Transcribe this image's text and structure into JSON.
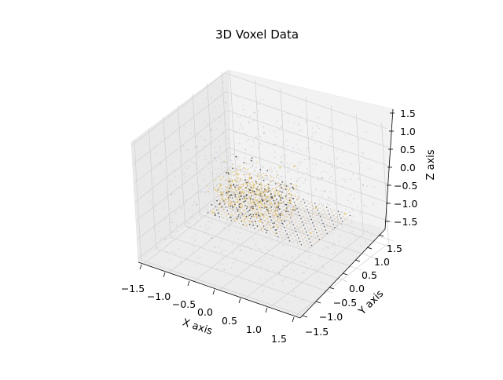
{
  "chart_data": {
    "type": "scatter",
    "projection": "3d",
    "title": "3D Voxel Data",
    "xlabel": "X axis",
    "ylabel": "Y axis",
    "zlabel": "Z axis",
    "xlim": [
      -1.6,
      1.6
    ],
    "ylim": [
      -1.6,
      1.6
    ],
    "zlim": [
      -1.6,
      1.6
    ],
    "xticks": [
      "−1.5",
      "−1.0",
      "−0.5",
      "0.0",
      "0.5",
      "1.0",
      "1.5"
    ],
    "yticks": [
      "−1.5",
      "−1.0",
      "−0.5",
      "0.0",
      "0.5",
      "1.0",
      "1.5"
    ],
    "zticks": [
      "1.5",
      "1.0",
      "0.5",
      "0.0",
      "−0.5",
      "−1.0",
      "−1.5"
    ],
    "grid": true,
    "legend": false,
    "colors": {
      "pane": "#f2f2f2",
      "grid": "#d0d0d0",
      "scatter_gray": "#c9c9c9",
      "scatter_lavender": "#c8c8f0",
      "object_gold": "#e6c868",
      "object_tan": "#d8b890",
      "object_dark": "#404040"
    },
    "series": [
      {
        "values": [
          [
            -1.2,
            0.4,
            0.9
          ],
          [
            -0.9,
            -0.6,
            1.2
          ],
          [
            0.3,
            1.1,
            1.4
          ],
          [
            1.1,
            0.2,
            0.8
          ],
          [
            -0.4,
            -1.1,
            -0.7
          ],
          [
            0.8,
            -0.9,
            -1.2
          ],
          [
            -1.3,
            0.9,
            -0.3
          ],
          [
            1.3,
            1.2,
            0.1
          ],
          [
            0.0,
            0.5,
            1.0
          ],
          [
            -0.7,
            1.3,
            0.5
          ],
          [
            0.6,
            -0.3,
            1.3
          ],
          [
            -1.1,
            -1.2,
            0.2
          ],
          [
            1.0,
            0.9,
            -0.9
          ],
          [
            -0.2,
            -0.5,
            -1.3
          ],
          [
            0.4,
            1.4,
            -0.6
          ],
          [
            -1.4,
            0.1,
            -1.0
          ],
          [
            1.2,
            -1.3,
            0.6
          ],
          [
            -0.5,
            0.7,
            1.5
          ],
          [
            0.9,
            0.4,
            -0.4
          ],
          [
            -0.8,
            -0.2,
            0.7
          ]
        ]
      },
      {
        "values": [
          [
            -0.1,
            -0.5,
            0.3
          ],
          [
            0.4,
            -0.5,
            0.4
          ],
          [
            -0.4,
            -0.7,
            0.45
          ],
          [
            0.2,
            0.3,
            0.6
          ],
          [
            -0.9,
            -0.2,
            -0.8
          ],
          [
            0.8,
            0.2,
            -0.8
          ],
          [
            -1.0,
            0.9,
            -0.85
          ],
          [
            0.9,
            1.2,
            -0.85
          ],
          [
            0.0,
            0.4,
            -0.8
          ],
          [
            -0.5,
            0.5,
            -0.75
          ],
          [
            0.5,
            0.9,
            -0.7
          ],
          [
            0.1,
            -0.3,
            -0.5
          ],
          [
            -0.3,
            0.1,
            0.2
          ],
          [
            0.3,
            0.6,
            0.5
          ],
          [
            0.6,
            -0.1,
            0.1
          ],
          [
            -0.6,
            -0.4,
            0.0
          ]
        ]
      }
    ]
  }
}
